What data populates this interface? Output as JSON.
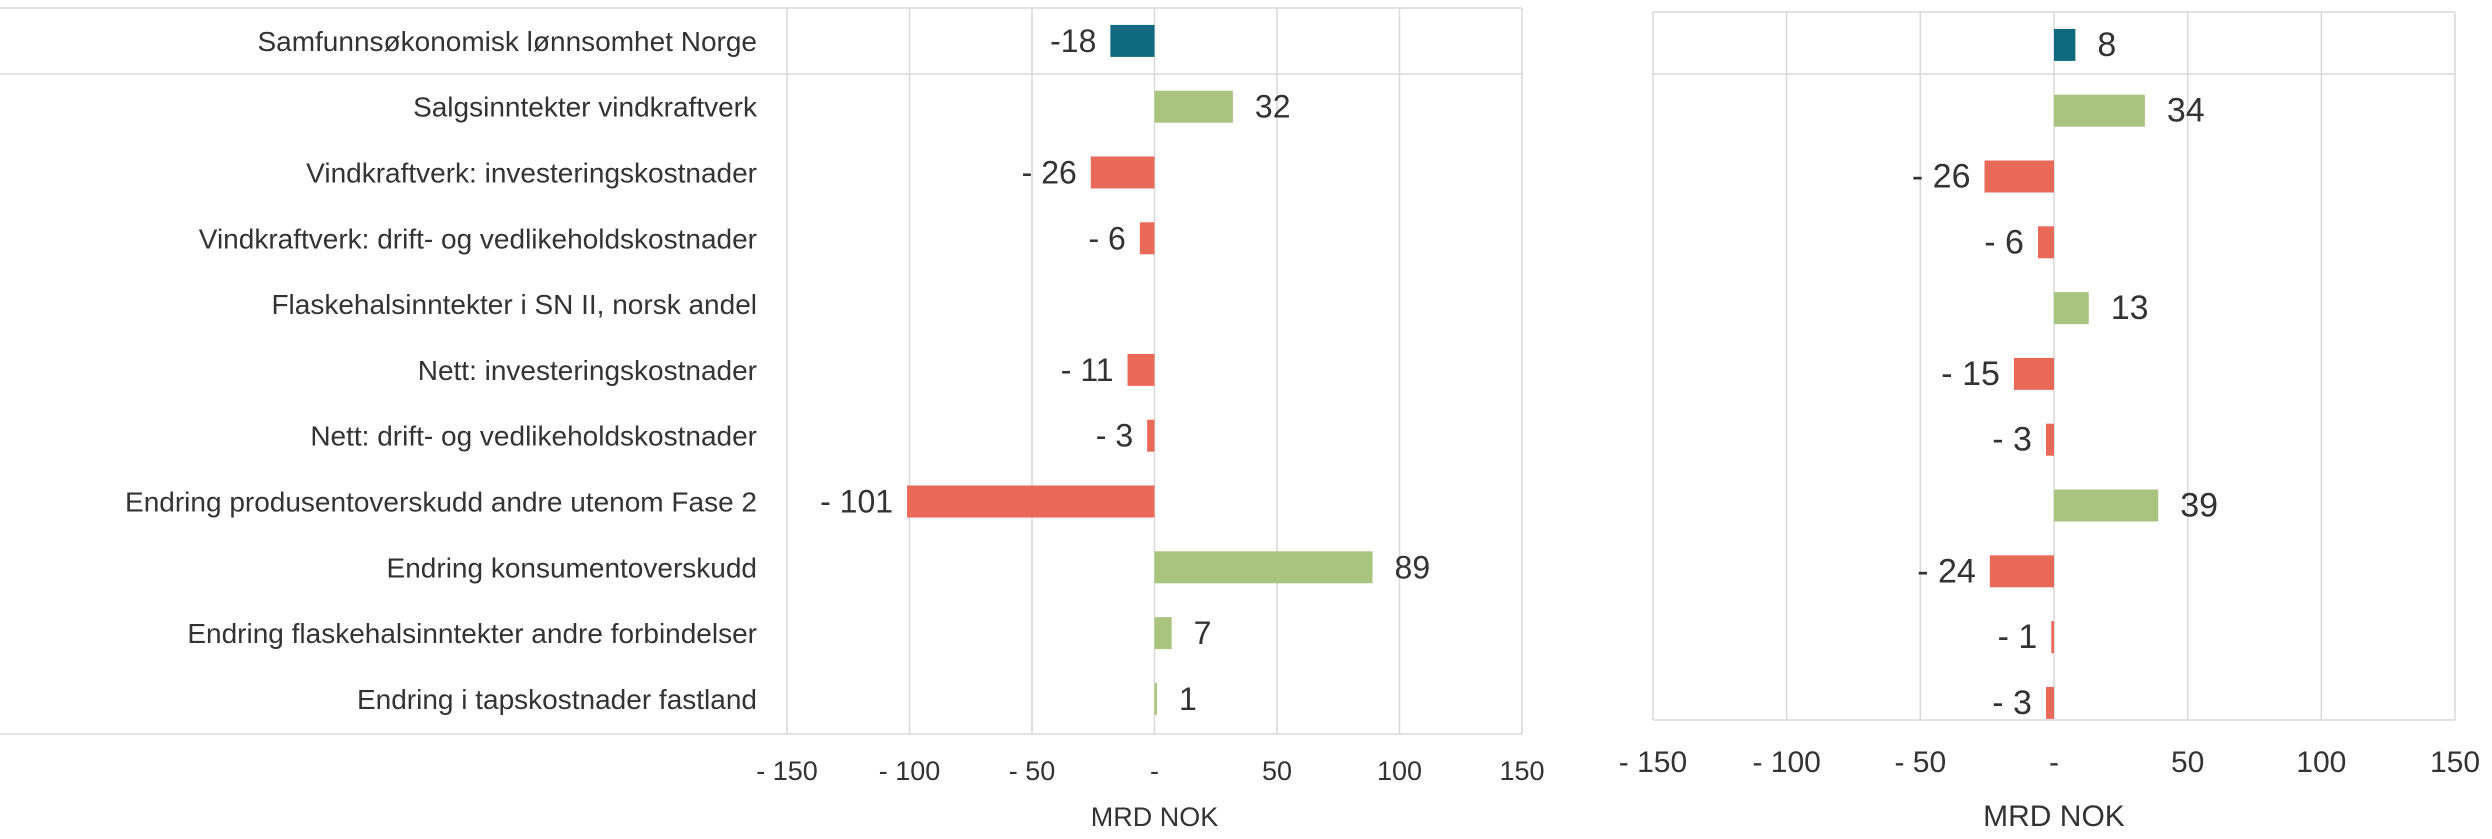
{
  "colors": {
    "total": "#0e6a7f",
    "positive": "#a9c47f",
    "negative": "#e96a58",
    "grid": "#d9d9d9",
    "text": "#333333"
  },
  "chart_data": [
    {
      "type": "bar",
      "orientation": "horizontal",
      "categories": [
        "Samfunnsøkonomisk lønnsomhet Norge",
        "Salgsinntekter vindkraftverk",
        "Vindkraftverk: investeringskostnader",
        "Vindkraftverk: drift- og vedlikeholdskostnader",
        "Flaskehalsinntekter i SN II, norsk andel",
        "Nett: investeringskostnader",
        "Nett: drift- og vedlikeholdskostnader",
        "Endring produsentoverskudd andre utenom Fase 2",
        "Endring konsumentoverskudd",
        "Endring flaskehalsinntekter andre forbindelser",
        "Endring i tapskostnader fastland"
      ],
      "values": [
        -18,
        32,
        -26,
        -6,
        null,
        -11,
        -3,
        -101,
        89,
        7,
        1
      ],
      "data_labels": [
        "-18",
        "32",
        "- 26",
        "- 6",
        "",
        "- 11",
        "- 3",
        "- 101",
        "89",
        "7",
        "1"
      ],
      "xlabel": "MRD NOK",
      "xlim": [
        -150,
        150
      ],
      "xticks": [
        -150,
        -100,
        -50,
        0,
        50,
        100,
        150
      ],
      "xtick_labels": [
        "- 150",
        "- 100",
        "- 50",
        "-",
        "50",
        "100",
        "150"
      ],
      "grid": true
    },
    {
      "type": "bar",
      "orientation": "horizontal",
      "values": [
        8,
        34,
        -26,
        -6,
        13,
        -15,
        -3,
        39,
        -24,
        -1,
        -3
      ],
      "data_labels": [
        "8",
        "34",
        "- 26",
        "- 6",
        "13",
        "- 15",
        "- 3",
        "39",
        "- 24",
        "- 1",
        "- 3"
      ],
      "xlabel": "MRD NOK",
      "xlim": [
        -150,
        150
      ],
      "xticks": [
        -150,
        -100,
        -50,
        0,
        50,
        100,
        150
      ],
      "xtick_labels": [
        "- 150",
        "- 100",
        "- 50",
        "-",
        "50",
        "100",
        "150"
      ],
      "grid": true
    }
  ]
}
